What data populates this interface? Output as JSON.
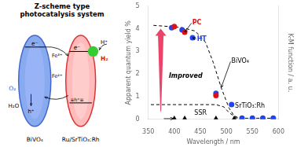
{
  "chart_data": [
    {
      "type": "diagram",
      "title": "Z-scheme type\nphotocatalysis system",
      "annotations": [
        "e⁻",
        "e⁻",
        "≡h⁺≡",
        "H⁺",
        "H₂",
        "O₂",
        "H₂O",
        "h⁺",
        "Fe³⁺",
        "Fe²⁺",
        "BiVO₄",
        "Ru/SrTiO₃:Rh"
      ]
    },
    {
      "type": "scatter",
      "xlabel": "Wavelength / nm",
      "ylabel": "Apparent quantum yield %",
      "y2label": "K-M function / a. u.",
      "xlim": [
        350,
        600
      ],
      "xticks": [
        350,
        400,
        450,
        500,
        550,
        600
      ],
      "ylim": [
        0,
        5
      ],
      "yticks": [
        0,
        1,
        2,
        3,
        4,
        5
      ],
      "y2lim": [
        0,
        5
      ],
      "grid": false,
      "legend": "none",
      "series": [
        {
          "name": "BiVO₄",
          "type": "line",
          "line_style": "dashed",
          "color": "#000000",
          "x": [
            360,
            390,
            415,
            440,
            460,
            475,
            490,
            505,
            515,
            525
          ],
          "values": [
            4.15,
            4.1,
            4.05,
            3.9,
            3.4,
            2.5,
            1.4,
            0.5,
            0.15,
            0.05
          ]
        },
        {
          "name": "SrTiO₃:Rh",
          "type": "line",
          "line_style": "dashed",
          "color": "#000000",
          "x": [
            355,
            380,
            400,
            430,
            460,
            480,
            495,
            505,
            520,
            540,
            560,
            600
          ],
          "values": [
            0.65,
            0.65,
            0.65,
            0.65,
            0.65,
            0.65,
            0.55,
            0.3,
            0.05,
            0.05,
            0.05,
            0.05
          ]
        },
        {
          "name": "PC",
          "type": "scatter",
          "marker": "circle",
          "color": "#dd1111",
          "x": [
            400,
            420,
            480
          ],
          "values": [
            4.1,
            3.85,
            1.05
          ]
        },
        {
          "name": "HT",
          "type": "scatter",
          "marker": "circle",
          "color": "#2244ee",
          "x": [
            395,
            415,
            435,
            480
          ],
          "values": [
            4.05,
            3.95,
            3.6,
            1.15
          ]
        },
        {
          "type": "scatter",
          "marker": "circle",
          "color": "#2244ee",
          "x": [
            510,
            530,
            550,
            570,
            590
          ],
          "values": [
            0.65,
            0.05,
            0.05,
            0.05,
            0.05
          ]
        },
        {
          "name": "SSR",
          "type": "scatter",
          "marker": "triangle",
          "color": "#000000",
          "x": [
            400,
            420,
            480,
            515
          ],
          "values": [
            0.03,
            0.03,
            0.03,
            0.03
          ]
        }
      ],
      "annotations": [
        {
          "text": "PC",
          "x": 433,
          "y": 4.25,
          "color": "#dd1111",
          "arrow_to": [
            420,
            3.85
          ]
        },
        {
          "text": "HT",
          "x": 442,
          "y": 3.55,
          "color": "#2244ee",
          "arrow_to": [
            435,
            3.6
          ]
        },
        {
          "text": "BiVO₄",
          "x": 508,
          "y": 2.55,
          "arrow_to": [
            490,
            1.4
          ]
        },
        {
          "text": "SrTiO₃:Rh",
          "x": 515,
          "y": 0.58
        },
        {
          "text": "SSR",
          "x": 437,
          "y": 0.28,
          "arrow_from": [
            380,
            0.03
          ],
          "arrow_to": [
            398,
            0.03
          ]
        },
        {
          "text": "Improved",
          "x": 388,
          "y": 1.9,
          "marker": "fancy_arrow",
          "arrow_from": [
            374,
            0.35
          ],
          "arrow_to": [
            374,
            4.0
          ]
        }
      ]
    }
  ]
}
